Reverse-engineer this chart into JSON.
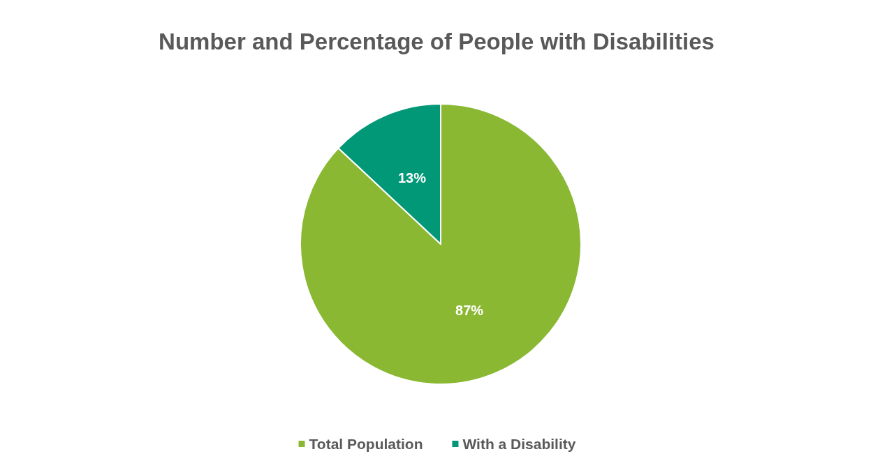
{
  "chart_data": {
    "type": "pie",
    "title": "Number and Percentage of People with Disabilities",
    "categories": [
      "Total Population",
      "With a Disability"
    ],
    "values": [
      87,
      13
    ],
    "colors": [
      "#8ab833",
      "#009877"
    ],
    "value_labels": [
      "87%",
      "13%"
    ],
    "legend": "bottom"
  }
}
